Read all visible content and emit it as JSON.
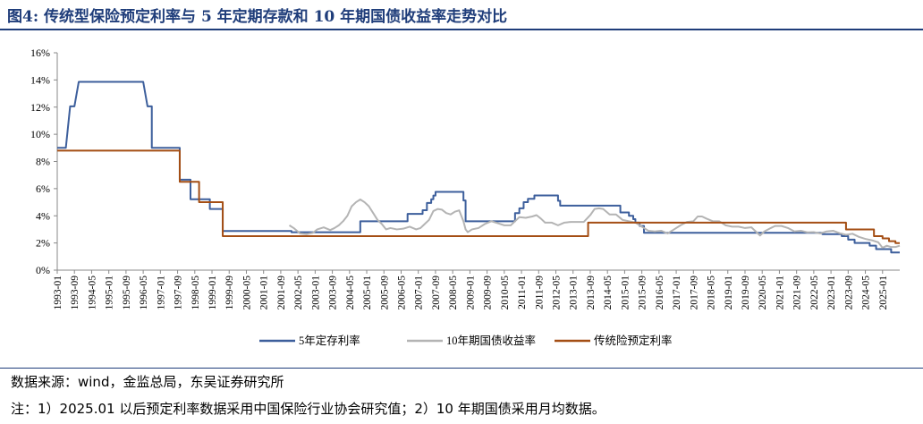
{
  "header": {
    "title": "图4:  传统型保险预定利率与 5 年定期存款和 10 年期国债收益率走势对比"
  },
  "footer": {
    "source": "数据来源：wind，金监总局，东吴证券研究所",
    "note": "注：1）2025.01 以后预定利率数据采用中国保险行业协会研究值；2）10 年期国债采用月均数据。"
  },
  "chart_data": {
    "type": "line",
    "title": "",
    "xlabel": "",
    "ylabel": "",
    "xlim": [
      "1993-01",
      "2025-09"
    ],
    "ylim": [
      0,
      16
    ],
    "y_ticks": [
      "0%",
      "2%",
      "4%",
      "6%",
      "8%",
      "10%",
      "12%",
      "14%",
      "16%"
    ],
    "x_ticks": [
      "1993-01",
      "1993-09",
      "1994-05",
      "1995-01",
      "1995-09",
      "1996-05",
      "1997-01",
      "1997-09",
      "1998-05",
      "1999-01",
      "1999-09",
      "2000-05",
      "2001-01",
      "2001-09",
      "2002-05",
      "2003-01",
      "2003-09",
      "2004-05",
      "2005-01",
      "2005-09",
      "2006-05",
      "2007-01",
      "2007-09",
      "2008-05",
      "2009-01",
      "2009-09",
      "2010-05",
      "2011-01",
      "2011-09",
      "2012-05",
      "2013-01",
      "2013-09",
      "2014-05",
      "2015-01",
      "2015-09",
      "2016-05",
      "2017-01",
      "2017-09",
      "2018-05",
      "2019-01",
      "2019-09",
      "2020-05",
      "2021-01",
      "2021-09",
      "2022-05",
      "2023-01",
      "2023-09",
      "2024-05",
      "2025-01"
    ],
    "grid": false,
    "legend_position": "bottom",
    "series": [
      {
        "name": "5年定存利率",
        "color": "#3d5f9c",
        "step": true,
        "points": [
          [
            "1993-01",
            9.0
          ],
          [
            "1993-05",
            9.0
          ],
          [
            "1993-07",
            12.06
          ],
          [
            "1993-09",
            12.06
          ],
          [
            "1993-11",
            13.86
          ],
          [
            "1996-05",
            13.86
          ],
          [
            "1996-07",
            12.06
          ],
          [
            "1996-09",
            12.06
          ],
          [
            "1996-09",
            9.0
          ],
          [
            "1997-10",
            9.0
          ],
          [
            "1997-10",
            6.66
          ],
          [
            "1998-03",
            6.66
          ],
          [
            "1998-03",
            5.22
          ],
          [
            "1998-12",
            5.22
          ],
          [
            "1998-12",
            4.5
          ],
          [
            "1999-06",
            4.5
          ],
          [
            "1999-06",
            2.88
          ],
          [
            "2002-02",
            2.88
          ],
          [
            "2002-02",
            2.79
          ],
          [
            "2004-10",
            2.79
          ],
          [
            "2004-10",
            3.6
          ],
          [
            "2006-08",
            3.6
          ],
          [
            "2006-08",
            4.14
          ],
          [
            "2007-03",
            4.14
          ],
          [
            "2007-03",
            4.41
          ],
          [
            "2007-05",
            4.41
          ],
          [
            "2007-05",
            4.95
          ],
          [
            "2007-07",
            4.95
          ],
          [
            "2007-07",
            5.22
          ],
          [
            "2007-08",
            5.22
          ],
          [
            "2007-08",
            5.49
          ],
          [
            "2007-09",
            5.49
          ],
          [
            "2007-09",
            5.76
          ],
          [
            "2008-10",
            5.76
          ],
          [
            "2008-10",
            5.13
          ],
          [
            "2008-11",
            5.13
          ],
          [
            "2008-11",
            3.6
          ],
          [
            "2010-10",
            3.6
          ],
          [
            "2010-10",
            4.2
          ],
          [
            "2010-12",
            4.2
          ],
          [
            "2010-12",
            4.55
          ],
          [
            "2011-02",
            4.55
          ],
          [
            "2011-02",
            5.0
          ],
          [
            "2011-04",
            5.0
          ],
          [
            "2011-04",
            5.25
          ],
          [
            "2011-07",
            5.25
          ],
          [
            "2011-07",
            5.5
          ],
          [
            "2012-06",
            5.5
          ],
          [
            "2012-06",
            5.1
          ],
          [
            "2012-07",
            5.1
          ],
          [
            "2012-07",
            4.75
          ],
          [
            "2014-11",
            4.75
          ],
          [
            "2014-11",
            4.25
          ],
          [
            "2015-03",
            4.25
          ],
          [
            "2015-03",
            4.0
          ],
          [
            "2015-05",
            4.0
          ],
          [
            "2015-05",
            3.75
          ],
          [
            "2015-06",
            3.75
          ],
          [
            "2015-06",
            3.5
          ],
          [
            "2015-08",
            3.5
          ],
          [
            "2015-08",
            3.25
          ],
          [
            "2015-10",
            3.25
          ],
          [
            "2015-10",
            2.75
          ],
          [
            "2022-09",
            2.75
          ],
          [
            "2022-09",
            2.65
          ],
          [
            "2023-06",
            2.65
          ],
          [
            "2023-06",
            2.5
          ],
          [
            "2023-09",
            2.5
          ],
          [
            "2023-09",
            2.25
          ],
          [
            "2023-12",
            2.25
          ],
          [
            "2023-12",
            2.0
          ],
          [
            "2024-07",
            2.0
          ],
          [
            "2024-07",
            1.8
          ],
          [
            "2024-10",
            1.8
          ],
          [
            "2024-10",
            1.55
          ],
          [
            "2025-05",
            1.55
          ],
          [
            "2025-05",
            1.3
          ],
          [
            "2025-09",
            1.3
          ]
        ]
      },
      {
        "name": "10年期国债收益率",
        "color": "#b4b4b4",
        "step": false,
        "points": [
          [
            "2002-01",
            3.3
          ],
          [
            "2002-03",
            3.1
          ],
          [
            "2002-06",
            2.7
          ],
          [
            "2002-09",
            2.65
          ],
          [
            "2002-12",
            2.75
          ],
          [
            "2003-02",
            3.0
          ],
          [
            "2003-05",
            3.15
          ],
          [
            "2003-08",
            2.95
          ],
          [
            "2003-10",
            3.1
          ],
          [
            "2003-12",
            3.3
          ],
          [
            "2004-02",
            3.6
          ],
          [
            "2004-04",
            4.0
          ],
          [
            "2004-06",
            4.7
          ],
          [
            "2004-08",
            5.0
          ],
          [
            "2004-10",
            5.2
          ],
          [
            "2004-12",
            5.0
          ],
          [
            "2005-02",
            4.7
          ],
          [
            "2005-04",
            4.2
          ],
          [
            "2005-06",
            3.7
          ],
          [
            "2005-08",
            3.4
          ],
          [
            "2005-10",
            3.0
          ],
          [
            "2005-12",
            3.1
          ],
          [
            "2006-03",
            3.0
          ],
          [
            "2006-06",
            3.05
          ],
          [
            "2006-09",
            3.2
          ],
          [
            "2006-12",
            3.0
          ],
          [
            "2007-02",
            3.1
          ],
          [
            "2007-04",
            3.4
          ],
          [
            "2007-06",
            3.7
          ],
          [
            "2007-08",
            4.35
          ],
          [
            "2007-10",
            4.5
          ],
          [
            "2007-12",
            4.45
          ],
          [
            "2008-02",
            4.2
          ],
          [
            "2008-04",
            4.1
          ],
          [
            "2008-06",
            4.3
          ],
          [
            "2008-08",
            4.4
          ],
          [
            "2008-09",
            4.0
          ],
          [
            "2008-10",
            3.6
          ],
          [
            "2008-11",
            3.0
          ],
          [
            "2008-12",
            2.8
          ],
          [
            "2009-02",
            3.0
          ],
          [
            "2009-05",
            3.1
          ],
          [
            "2009-08",
            3.4
          ],
          [
            "2009-11",
            3.6
          ],
          [
            "2010-02",
            3.45
          ],
          [
            "2010-05",
            3.3
          ],
          [
            "2010-08",
            3.3
          ],
          [
            "2010-10",
            3.6
          ],
          [
            "2010-12",
            3.9
          ],
          [
            "2011-03",
            3.85
          ],
          [
            "2011-06",
            3.95
          ],
          [
            "2011-08",
            4.05
          ],
          [
            "2011-10",
            3.8
          ],
          [
            "2011-12",
            3.5
          ],
          [
            "2012-03",
            3.5
          ],
          [
            "2012-06",
            3.3
          ],
          [
            "2012-09",
            3.5
          ],
          [
            "2012-12",
            3.55
          ],
          [
            "2013-03",
            3.55
          ],
          [
            "2013-06",
            3.55
          ],
          [
            "2013-09",
            4.05
          ],
          [
            "2013-11",
            4.5
          ],
          [
            "2014-01",
            4.55
          ],
          [
            "2014-03",
            4.5
          ],
          [
            "2014-06",
            4.1
          ],
          [
            "2014-09",
            4.1
          ],
          [
            "2014-12",
            3.7
          ],
          [
            "2015-03",
            3.6
          ],
          [
            "2015-06",
            3.5
          ],
          [
            "2015-09",
            3.2
          ],
          [
            "2015-12",
            2.9
          ],
          [
            "2016-03",
            2.85
          ],
          [
            "2016-06",
            2.9
          ],
          [
            "2016-09",
            2.7
          ],
          [
            "2016-12",
            3.0
          ],
          [
            "2017-03",
            3.3
          ],
          [
            "2017-06",
            3.55
          ],
          [
            "2017-09",
            3.6
          ],
          [
            "2017-11",
            3.95
          ],
          [
            "2018-01",
            3.95
          ],
          [
            "2018-03",
            3.8
          ],
          [
            "2018-06",
            3.6
          ],
          [
            "2018-09",
            3.6
          ],
          [
            "2018-12",
            3.3
          ],
          [
            "2019-03",
            3.2
          ],
          [
            "2019-06",
            3.2
          ],
          [
            "2019-09",
            3.1
          ],
          [
            "2019-12",
            3.15
          ],
          [
            "2020-02",
            2.85
          ],
          [
            "2020-04",
            2.55
          ],
          [
            "2020-06",
            2.85
          ],
          [
            "2020-09",
            3.1
          ],
          [
            "2020-11",
            3.25
          ],
          [
            "2021-02",
            3.25
          ],
          [
            "2021-05",
            3.1
          ],
          [
            "2021-08",
            2.85
          ],
          [
            "2021-11",
            2.9
          ],
          [
            "2022-02",
            2.78
          ],
          [
            "2022-05",
            2.8
          ],
          [
            "2022-08",
            2.7
          ],
          [
            "2022-11",
            2.85
          ],
          [
            "2023-02",
            2.9
          ],
          [
            "2023-05",
            2.72
          ],
          [
            "2023-08",
            2.6
          ],
          [
            "2023-11",
            2.68
          ],
          [
            "2024-02",
            2.45
          ],
          [
            "2024-05",
            2.3
          ],
          [
            "2024-08",
            2.2
          ],
          [
            "2024-11",
            2.05
          ],
          [
            "2025-01",
            1.65
          ],
          [
            "2025-03",
            1.8
          ],
          [
            "2025-05",
            1.7
          ],
          [
            "2025-07",
            1.7
          ],
          [
            "2025-09",
            1.8
          ]
        ]
      },
      {
        "name": "传统险预定利率",
        "color": "#a44e14",
        "step": true,
        "points": [
          [
            "1993-01",
            8.8
          ],
          [
            "1997-10",
            8.8
          ],
          [
            "1997-10",
            6.5
          ],
          [
            "1998-03",
            6.5
          ],
          [
            "1998-07",
            6.5
          ],
          [
            "1998-07",
            5.0
          ],
          [
            "1999-06",
            5.0
          ],
          [
            "1999-06",
            2.5
          ],
          [
            "2013-08",
            2.5
          ],
          [
            "2013-08",
            3.5
          ],
          [
            "2023-08",
            3.5
          ],
          [
            "2023-08",
            3.0
          ],
          [
            "2024-09",
            3.0
          ],
          [
            "2024-09",
            2.5
          ],
          [
            "2025-01",
            2.5
          ],
          [
            "2025-01",
            2.34
          ],
          [
            "2025-04",
            2.34
          ],
          [
            "2025-04",
            2.13
          ],
          [
            "2025-07",
            2.13
          ],
          [
            "2025-07",
            1.99
          ],
          [
            "2025-09",
            1.99
          ]
        ]
      }
    ]
  }
}
